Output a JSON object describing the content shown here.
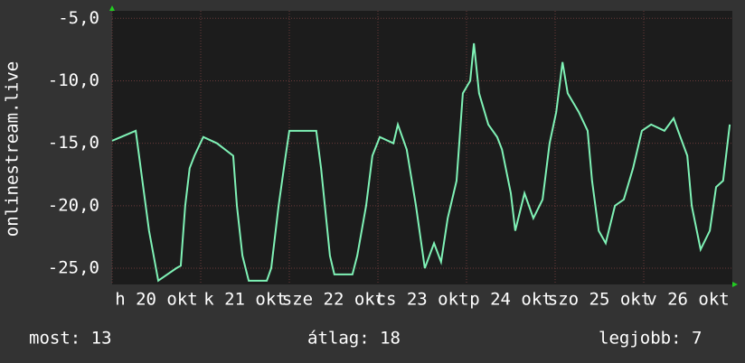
{
  "chart_data": {
    "type": "line",
    "y_label": "onlinestream.live",
    "categories": [
      "h 20 okt",
      "k 21 okt",
      "sze 22 okt",
      "cs 23 okt",
      "p 24 okt",
      "szo 25 okt",
      "v 26 okt"
    ],
    "xlim": [
      0,
      168
    ],
    "ylim": [
      -26.3,
      -4.4
    ],
    "yticks": [
      {
        "value": -5,
        "label": "-5,0"
      },
      {
        "value": -10,
        "label": "-10,0"
      },
      {
        "value": -15,
        "label": "-15,0"
      },
      {
        "value": -20,
        "label": "-20,0"
      },
      {
        "value": -25,
        "label": "-25,0"
      }
    ],
    "grid": true,
    "series": [
      {
        "color": "#7ff2b6",
        "x": [
          0,
          6.4,
          10,
          12.5,
          17.4,
          18.6,
          19.8,
          21,
          22.3,
          24.7,
          28.4,
          32.8,
          33.8,
          35.3,
          37,
          41.9,
          43.1,
          45.1,
          47,
          48,
          55.3,
          56.6,
          59,
          60.2,
          65.1,
          66.4,
          68.8,
          70.5,
          72.5,
          76.2,
          77.4,
          79.8,
          82.3,
          84.7,
          87.2,
          89.1,
          90.9,
          93.3,
          95,
          97,
          98,
          99.4,
          101.9,
          104.3,
          105.6,
          108,
          109.2,
          111.7,
          114.1,
          116.6,
          118.5,
          120.3,
          122,
          123.4,
          126.4,
          128.8,
          130,
          131.8,
          133.7,
          136.2,
          138.6,
          141.1,
          143.5,
          146,
          149.6,
          152.1,
          153.3,
          155.8,
          157,
          159.4,
          161.9,
          163.6,
          165.5,
          167.3
        ],
        "values": [
          -14.8,
          -14,
          -22,
          -26,
          -25,
          -24.8,
          -20,
          -17,
          -16,
          -14.5,
          -15,
          -16,
          -20,
          -24,
          -26,
          -26,
          -25,
          -20,
          -16,
          -14,
          -14,
          -17,
          -24,
          -25.5,
          -25.5,
          -24,
          -20,
          -16,
          -14.5,
          -15,
          -13.5,
          -15.5,
          -20,
          -25,
          -23,
          -24.5,
          -21,
          -18,
          -11,
          -10,
          -7,
          -11,
          -13.5,
          -14.5,
          -15.5,
          -19,
          -22,
          -19,
          -21,
          -19.5,
          -15,
          -12.5,
          -8.5,
          -11,
          -12.5,
          -14,
          -18,
          -22,
          -23,
          -20,
          -19.5,
          -17,
          -14,
          -13.5,
          -14,
          -13,
          -14,
          -16,
          -20,
          -23.5,
          -22,
          -18.5,
          -18,
          -13.5
        ]
      }
    ]
  },
  "footer": [
    "most: 13",
    "átlag: 18",
    "legjobb: 7"
  ]
}
